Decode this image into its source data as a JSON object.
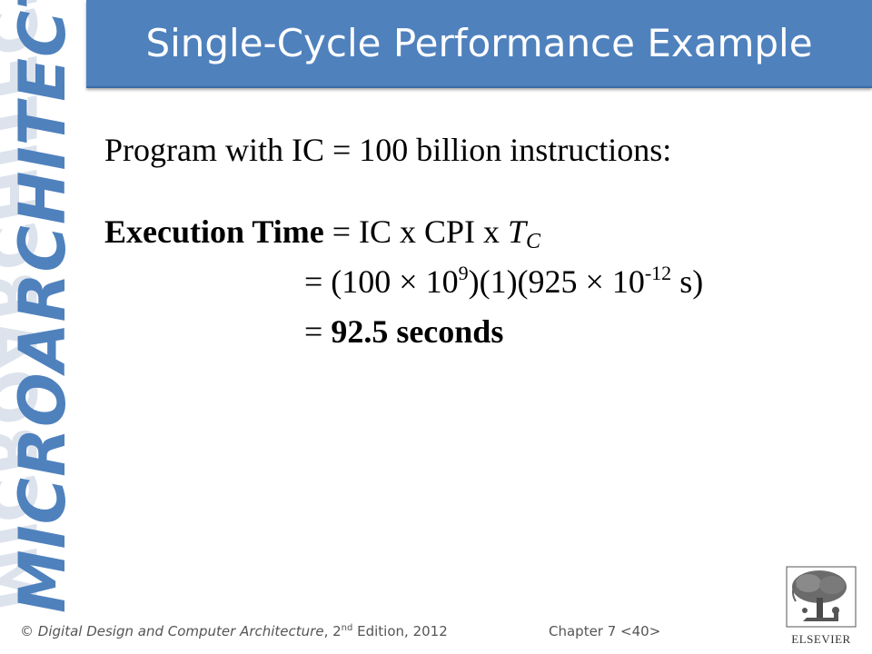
{
  "slide": {
    "title": "Single-Cycle Performance Example",
    "side_wordmark": "MICROARCHITECTURE"
  },
  "body": {
    "line1": "Program with IC = 100 billion instructions:",
    "exec_bold": "Execution Time",
    "exec_rest": " = IC x CPI x ",
    "tc_letter": "T",
    "tc_sub": "C",
    "calc_a": "= (100 × 10",
    "calc_exp1": "9",
    "calc_b": ")(1)(925  × 10",
    "calc_exp2": "-12",
    "calc_c": " s)",
    "result_eq": "= ",
    "result_bold": "92.5 seconds"
  },
  "footer": {
    "copyright": "© ",
    "book_italic": "Digital Design and Computer Architecture",
    "edition_pre": ", 2",
    "edition_sup": "nd",
    "edition_post": " Edition, 2012",
    "chapter": "Chapter 7 <40>"
  },
  "logo": {
    "text": "ELSEVIER"
  },
  "colors": {
    "title_bar": "#4f81bd",
    "wordmark": "#4f81bd"
  }
}
